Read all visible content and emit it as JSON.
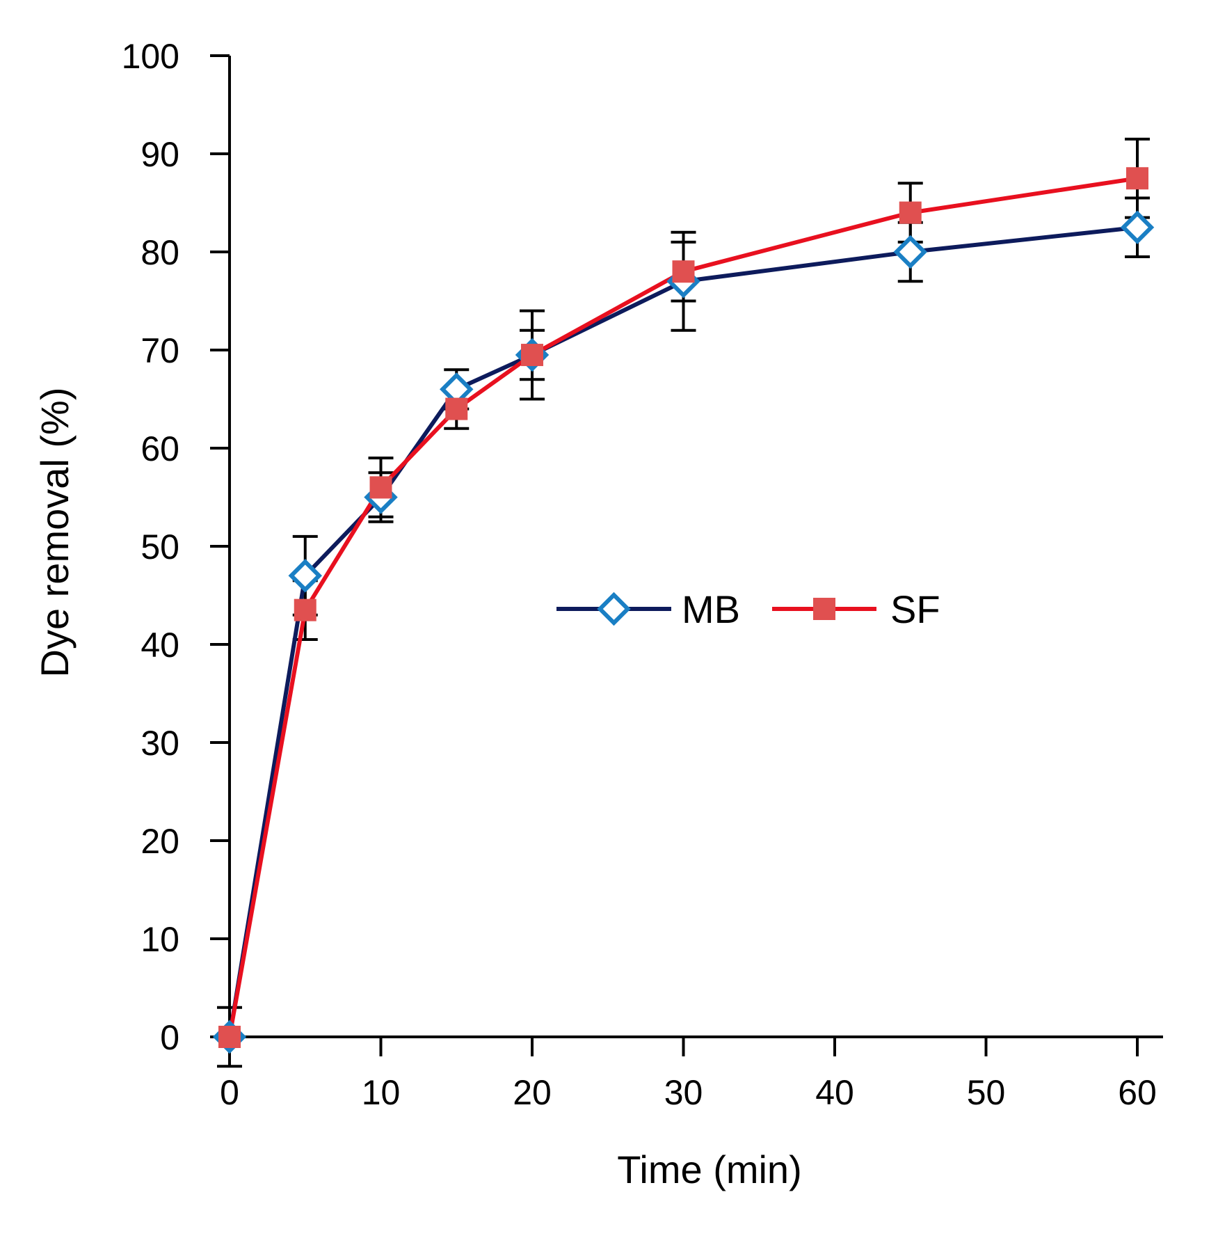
{
  "chart_data": {
    "type": "line",
    "title": "",
    "xlabel": "Time (min)",
    "ylabel": "Dye removal (%)",
    "xlim": [
      0,
      60
    ],
    "ylim": [
      0,
      100
    ],
    "xticks": [
      0,
      10,
      20,
      30,
      40,
      50,
      60
    ],
    "yticks": [
      0,
      10,
      20,
      30,
      40,
      50,
      60,
      70,
      80,
      90,
      100
    ],
    "grid": false,
    "legend_position": "center-right",
    "x": [
      0,
      5,
      10,
      15,
      20,
      30,
      45,
      60
    ],
    "series": [
      {
        "name": "MB",
        "values": [
          0,
          47,
          55,
          66,
          69.5,
          77,
          80,
          82.5
        ],
        "errors": [
          0,
          4,
          2.5,
          2,
          4.5,
          5,
          3,
          3
        ],
        "line_color": "#0d1b5c",
        "marker": "diamond",
        "marker_color": "#1a7fc4"
      },
      {
        "name": "SF",
        "values": [
          0,
          43.5,
          56,
          64,
          69.5,
          78,
          84,
          87.5
        ],
        "errors": [
          3,
          3,
          3,
          2,
          2.5,
          3,
          3,
          4
        ],
        "line_color": "#e8101f",
        "marker": "square",
        "marker_color": "#e05050"
      }
    ]
  }
}
